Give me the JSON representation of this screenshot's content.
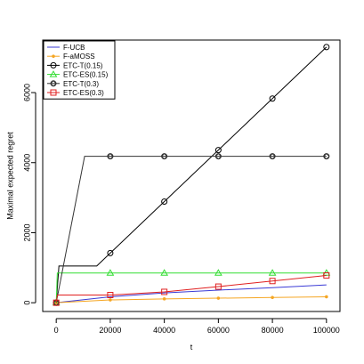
{
  "chart_data": {
    "type": "line",
    "xlabel": "t",
    "ylabel": "Maximal expected regret",
    "xlim": [
      -5000,
      105000
    ],
    "ylim": [
      -250,
      7500
    ],
    "xticks": [
      0,
      20000,
      40000,
      60000,
      80000,
      100000
    ],
    "xtick_labels": [
      "0",
      "20000",
      "40000",
      "60000",
      "80000",
      "100000"
    ],
    "yticks": [
      0,
      2000,
      4000,
      6000
    ],
    "ytick_labels": [
      "0",
      "2000",
      "4000",
      "6000"
    ],
    "grid": false,
    "legend_position": "top-left",
    "series": [
      {
        "name": "F-UCB",
        "color": "#3b3bd6",
        "marker": "none",
        "x": [
          0,
          20000,
          40000,
          60000,
          80000,
          100000
        ],
        "y": [
          0,
          170,
          280,
          360,
          430,
          510
        ],
        "marker_x": []
      },
      {
        "name": "F-aMOSS",
        "color": "#f5a623",
        "marker": "dot",
        "x": [
          0,
          20000,
          40000,
          60000,
          80000,
          100000
        ],
        "y": [
          0,
          80,
          110,
          130,
          150,
          170
        ],
        "marker_x": [
          0,
          20000,
          40000,
          60000,
          80000,
          100000
        ]
      },
      {
        "name": "ETC-T(0.15)",
        "color": "#000000",
        "marker": "circle",
        "x": [
          0,
          1000,
          15000,
          100000
        ],
        "y": [
          0,
          1050,
          1050,
          7300
        ],
        "marker_x": [
          0,
          20000,
          40000,
          60000,
          80000,
          100000
        ]
      },
      {
        "name": "ETC-ES(0.15)",
        "color": "#33dd33",
        "marker": "triangle",
        "x": [
          0,
          400,
          100000
        ],
        "y": [
          0,
          850,
          850
        ],
        "marker_x": [
          0,
          20000,
          40000,
          60000,
          80000,
          100000
        ]
      },
      {
        "name": "ETC-T(0.3)",
        "color": "#333333",
        "marker": "diamond",
        "x": [
          0,
          10500,
          100000
        ],
        "y": [
          0,
          4180,
          4180
        ],
        "marker_x": [
          0,
          20000,
          40000,
          60000,
          80000,
          100000
        ]
      },
      {
        "name": "ETC-ES(0.3)",
        "color": "#e02020",
        "marker": "square",
        "x": [
          0,
          400,
          20000,
          40000,
          60000,
          80000,
          100000
        ],
        "y": [
          0,
          220,
          220,
          310,
          460,
          620,
          780
        ],
        "marker_x": [
          0,
          20000,
          40000,
          60000,
          80000,
          100000
        ]
      }
    ]
  }
}
